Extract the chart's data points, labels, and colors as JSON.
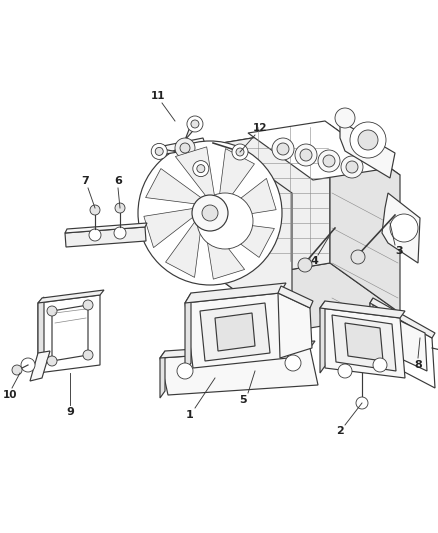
{
  "background_color": "#ffffff",
  "line_color": "#3a3a3a",
  "label_color": "#222222",
  "figsize": [
    4.38,
    5.33
  ],
  "dpi": 100,
  "lw": 0.85,
  "lw2": 0.6,
  "fc_white": "#ffffff",
  "fc_light": "#f8f8f8",
  "fc_mid": "#f0f0f0",
  "fc_dark": "#e4e4e4"
}
